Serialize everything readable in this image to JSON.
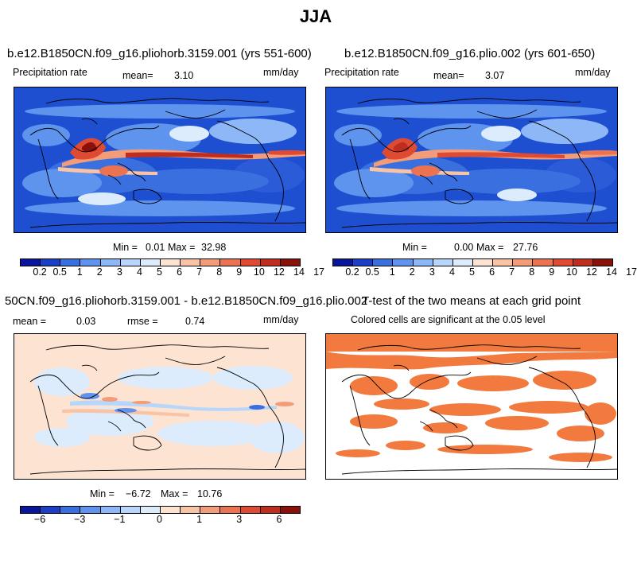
{
  "page": {
    "title": "JJA"
  },
  "colors": {
    "precip_scale": [
      "#08169b",
      "#1b40c6",
      "#3a6fe0",
      "#5e93ee",
      "#8db7f6",
      "#b8d6fb",
      "#dcecfd",
      "#fde4d2",
      "#f9c3a6",
      "#f49c78",
      "#ec7352",
      "#de4b32",
      "#bf2d1f",
      "#8a1109"
    ],
    "diff_scale": [
      "#08169b",
      "#1b40c6",
      "#3a6fe0",
      "#5e93ee",
      "#8db7f6",
      "#b8d6fb",
      "#dcecfd",
      "#fde4d2",
      "#f9c3a6",
      "#f49c78",
      "#ec7352",
      "#de4b32",
      "#bf2d1f",
      "#8a1109"
    ],
    "significant": "#f27a3e",
    "land_outline": "#000000"
  },
  "panel1": {
    "title": "b.e12.B1850CN.f09_g16.pliohorb.3159.001 (yrs 551-600)",
    "variable": "Precipitation rate",
    "mean_label": "mean=",
    "mean_value": "3.10",
    "units": "mm/day",
    "min_label": "Min =",
    "min_value": "0.01",
    "max_label": "Max =",
    "max_value": "32.98",
    "colorbar_ticks": [
      "0.2",
      "0.5",
      "1",
      "2",
      "3",
      "4",
      "5",
      "6",
      "7",
      "8",
      "9",
      "10",
      "12",
      "14",
      "17"
    ]
  },
  "panel2": {
    "title": "b.e12.B1850CN.f09_g16.plio.002 (yrs 601-650)",
    "variable": "Precipitation rate",
    "mean_label": "mean=",
    "mean_value": "3.07",
    "units": "mm/day",
    "min_label": "Min =",
    "min_value": "0.00",
    "max_label": "Max =",
    "max_value": "27.76",
    "colorbar_ticks": [
      "0.2",
      "0.5",
      "1",
      "2",
      "3",
      "4",
      "5",
      "6",
      "7",
      "8",
      "9",
      "10",
      "12",
      "14",
      "17"
    ]
  },
  "panel3": {
    "title": "50CN.f09_g16.pliohorb.3159.001 - b.e12.B1850CN.f09_g16.plio.002",
    "mean_label": "mean =",
    "mean_value": "0.03",
    "rmse_label": "rmse =",
    "rmse_value": "0.74",
    "units": "mm/day",
    "min_label": "Min =",
    "min_value": "−6.72",
    "max_label": "Max =",
    "max_value": "10.76",
    "colorbar_ticks": [
      "−6",
      "−3",
      "−1",
      "0",
      "1",
      "3",
      "6"
    ]
  },
  "panel4": {
    "title": "T-test of the two means at each grid point",
    "subtitle": "Colored cells are significant at the 0.05 level"
  },
  "chart_data": [
    {
      "type": "heatmap",
      "title": "b.e12.B1850CN.f09_g16.pliohorb.3159.001 (yrs 551-600)",
      "subtitle": "Precipitation rate",
      "units": "mm/day",
      "mean": 3.1,
      "min": 0.01,
      "max": 32.98,
      "levels": [
        0.2,
        0.5,
        1,
        2,
        3,
        4,
        5,
        6,
        7,
        8,
        9,
        10,
        12,
        14,
        17
      ]
    },
    {
      "type": "heatmap",
      "title": "b.e12.B1850CN.f09_g16.plio.002 (yrs 601-650)",
      "subtitle": "Precipitation rate",
      "units": "mm/day",
      "mean": 3.07,
      "min": 0.0,
      "max": 27.76,
      "levels": [
        0.2,
        0.5,
        1,
        2,
        3,
        4,
        5,
        6,
        7,
        8,
        9,
        10,
        12,
        14,
        17
      ]
    },
    {
      "type": "heatmap",
      "title": "50CN.f09_g16.pliohorb.3159.001 - b.e12.B1850CN.f09_g16.plio.002",
      "units": "mm/day",
      "mean": 0.03,
      "rmse": 0.74,
      "min": -6.72,
      "max": 10.76,
      "tick_labels": [
        -6,
        -3,
        -1,
        0,
        1,
        3,
        6
      ]
    },
    {
      "type": "heatmap",
      "title": "T-test of the two means at each grid point",
      "subtitle": "Colored cells are significant at the 0.05 level",
      "significance_level": 0.05
    }
  ]
}
